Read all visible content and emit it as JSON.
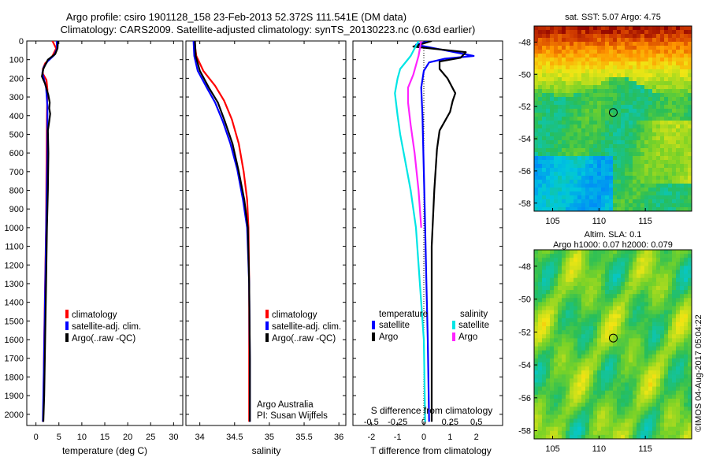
{
  "header": {
    "title_line1": "Argo profile: csiro 1901128_158 23-Feb-2013 52.372S 111.541E (DM data)",
    "title_line2": "Climatology: CARS2009. Satellite-adjusted climatology: synTS_20130223.nc (0.63d earlier)"
  },
  "colors": {
    "climatology": "#ff0000",
    "satellite": "#0000ff",
    "argo": "#000000",
    "satellite_salinity": "#00e5e5",
    "argo_salinity": "#ff22ff"
  },
  "depth_ticks": [
    "0",
    "100",
    "200",
    "300",
    "400",
    "500",
    "600",
    "700",
    "800",
    "900",
    "1000",
    "1100",
    "1200",
    "1300",
    "1400",
    "1500",
    "1600",
    "1700",
    "1800",
    "1900",
    "2000"
  ],
  "chart_data": [
    {
      "type": "line",
      "xlabel": "temperature (deg C)",
      "xlim": [
        -2,
        32
      ],
      "ylim": [
        2060,
        0
      ],
      "yreverse": true,
      "xticks": [
        "0",
        "5",
        "10",
        "15",
        "20",
        "25",
        "30"
      ],
      "legend": {
        "placement": "center-left",
        "entries": [
          "climatology",
          "satellite-adj. clim.",
          "Argo(..raw -QC)"
        ]
      },
      "series": [
        {
          "name": "climatology",
          "color": "#ff0000",
          "points": [
            [
              3.6,
              0
            ],
            [
              4.4,
              40
            ],
            [
              3.6,
              80
            ],
            [
              2.0,
              120
            ],
            [
              1.5,
              150
            ],
            [
              1.5,
              175
            ],
            [
              2.3,
              210
            ],
            [
              2.5,
              260
            ],
            [
              2.4,
              400
            ],
            [
              2.3,
              700
            ],
            [
              2.2,
              1000
            ],
            [
              2.0,
              1300
            ],
            [
              1.8,
              1600
            ],
            [
              1.6,
              2000
            ],
            [
              1.5,
              2040
            ]
          ]
        },
        {
          "name": "satellite-adj. clim.",
          "color": "#0000ff",
          "points": [
            [
              4.5,
              0
            ],
            [
              4.6,
              40
            ],
            [
              4.0,
              75
            ],
            [
              2.5,
              110
            ],
            [
              1.7,
              140
            ],
            [
              1.4,
              170
            ],
            [
              1.7,
              200
            ],
            [
              2.2,
              250
            ],
            [
              2.5,
              350
            ],
            [
              2.5,
              600
            ],
            [
              2.3,
              900
            ],
            [
              2.1,
              1200
            ],
            [
              1.9,
              1500
            ],
            [
              1.7,
              1800
            ],
            [
              1.5,
              2040
            ]
          ]
        },
        {
          "name": "Argo(..raw -QC)",
          "color": "#000000",
          "points": [
            [
              4.8,
              0
            ],
            [
              4.7,
              40
            ],
            [
              4.2,
              70
            ],
            [
              2.6,
              100
            ],
            [
              1.6,
              150
            ],
            [
              1.3,
              190
            ],
            [
              2.0,
              230
            ],
            [
              2.7,
              290
            ],
            [
              3.0,
              330
            ],
            [
              2.9,
              360
            ],
            [
              3.1,
              390
            ],
            [
              2.9,
              430
            ],
            [
              2.6,
              480
            ],
            [
              2.7,
              600
            ],
            [
              2.6,
              800
            ],
            [
              2.4,
              1000
            ],
            [
              2.2,
              1300
            ],
            [
              2.0,
              1600
            ],
            [
              1.8,
              1900
            ],
            [
              1.6,
              2040
            ]
          ]
        }
      ]
    },
    {
      "type": "line",
      "xlabel": "salinity",
      "xlim": [
        33.8,
        36.1
      ],
      "ylim": [
        2060,
        0
      ],
      "yreverse": true,
      "xticks": [
        "34",
        "34.5",
        "35",
        "35.5",
        "36"
      ],
      "legend": {
        "placement": "center-left",
        "entries": [
          "climatology",
          "satellite-adj. clim.",
          "Argo(..raw -QC)"
        ]
      },
      "annotations": [
        "Argo Australia",
        "PI: Susan Wijffels"
      ],
      "series": [
        {
          "name": "climatology",
          "color": "#ff0000",
          "points": [
            [
              33.92,
              0
            ],
            [
              33.95,
              80
            ],
            [
              34.05,
              160
            ],
            [
              34.22,
              240
            ],
            [
              34.35,
              320
            ],
            [
              34.46,
              420
            ],
            [
              34.56,
              550
            ],
            [
              34.63,
              700
            ],
            [
              34.68,
              850
            ],
            [
              34.7,
              1000
            ],
            [
              34.71,
              1300
            ],
            [
              34.71,
              1700
            ],
            [
              34.71,
              2040
            ]
          ]
        },
        {
          "name": "satellite-adj. clim.",
          "color": "#0000ff",
          "points": [
            [
              33.91,
              0
            ],
            [
              33.92,
              80
            ],
            [
              33.97,
              160
            ],
            [
              34.1,
              250
            ],
            [
              34.22,
              330
            ],
            [
              34.33,
              430
            ],
            [
              34.44,
              550
            ],
            [
              34.54,
              690
            ],
            [
              34.62,
              850
            ],
            [
              34.68,
              1000
            ],
            [
              34.71,
              1300
            ],
            [
              34.72,
              1700
            ],
            [
              34.72,
              2040
            ]
          ]
        },
        {
          "name": "Argo(..raw -QC)",
          "color": "#000000",
          "points": [
            [
              33.93,
              0
            ],
            [
              33.94,
              80
            ],
            [
              34.0,
              160
            ],
            [
              34.13,
              250
            ],
            [
              34.26,
              330
            ],
            [
              34.36,
              430
            ],
            [
              34.47,
              550
            ],
            [
              34.56,
              700
            ],
            [
              34.64,
              850
            ],
            [
              34.69,
              1000
            ],
            [
              34.71,
              1300
            ],
            [
              34.72,
              1700
            ],
            [
              34.72,
              2040
            ]
          ]
        }
      ]
    },
    {
      "type": "line",
      "xlabel": "T difference from climatology",
      "xlim": [
        -2.7,
        3.0
      ],
      "ylim": [
        2060,
        0
      ],
      "yreverse": true,
      "xticks": [
        "-2",
        "-1",
        "0",
        "1",
        "2"
      ],
      "xlabel2": "S difference from climatology",
      "xticks2": [
        "-0.5",
        "-0.25",
        "0",
        "0.25",
        "0.5"
      ],
      "legend": {
        "placement": "center",
        "group1": "temperature",
        "group2": "salinity",
        "entries": [
          "satellite",
          "Argo",
          "satellite",
          "Argo"
        ]
      },
      "series": [
        {
          "name": "satellite",
          "variable": "temperature",
          "color": "#0000ff",
          "points": [
            [
              0.2,
              0
            ],
            [
              -0.3,
              20
            ],
            [
              0.8,
              50
            ],
            [
              1.9,
              80
            ],
            [
              0.8,
              95
            ],
            [
              0.2,
              115
            ],
            [
              0.0,
              160
            ],
            [
              -0.1,
              250
            ],
            [
              -0.05,
              400
            ],
            [
              0.0,
              700
            ],
            [
              0.05,
              1000
            ],
            [
              0.1,
              1300
            ],
            [
              0.15,
              1600
            ],
            [
              0.2,
              2040
            ]
          ]
        },
        {
          "name": "Argo",
          "variable": "temperature",
          "color": "#000000",
          "points": [
            [
              0.3,
              0
            ],
            [
              -0.4,
              30
            ],
            [
              1.6,
              60
            ],
            [
              1.4,
              90
            ],
            [
              0.6,
              110
            ],
            [
              0.6,
              150
            ],
            [
              0.9,
              200
            ],
            [
              1.2,
              280
            ],
            [
              1.1,
              320
            ],
            [
              1.0,
              380
            ],
            [
              0.6,
              480
            ],
            [
              0.5,
              580
            ],
            [
              0.4,
              800
            ],
            [
              0.3,
              1100
            ],
            [
              0.3,
              1500
            ],
            [
              0.3,
              2040
            ]
          ]
        },
        {
          "name": "satellite",
          "variable": "salinity",
          "color": "#00e5e5",
          "points": [
            [
              -0.2,
              0
            ],
            [
              -0.5,
              80
            ],
            [
              -0.9,
              150
            ],
            [
              -1.0,
              200
            ],
            [
              -1.1,
              280
            ],
            [
              -1.0,
              400
            ],
            [
              -0.9,
              500
            ],
            [
              -0.7,
              650
            ],
            [
              -0.5,
              800
            ],
            [
              -0.3,
              1000
            ],
            [
              -0.15,
              1300
            ],
            [
              0.0,
              1600
            ],
            [
              0.05,
              2040
            ]
          ]
        },
        {
          "name": "Argo",
          "variable": "salinity",
          "color": "#ff22ff",
          "points": [
            [
              -0.1,
              0
            ],
            [
              -0.2,
              80
            ],
            [
              -0.4,
              180
            ],
            [
              -0.6,
              250
            ],
            [
              -0.6,
              330
            ],
            [
              -0.5,
              450
            ],
            [
              -0.35,
              600
            ],
            [
              -0.2,
              800
            ],
            [
              -0.1,
              1000
            ]
          ]
        }
      ]
    },
    {
      "type": "heatmap",
      "title": "sat. SST: 5.07 Argo: 4.75",
      "xlim": [
        103,
        120
      ],
      "ylim": [
        -58.5,
        -47
      ],
      "xticks": [
        "105",
        "110",
        "115"
      ],
      "yticks": [
        "-48",
        "-50",
        "-52",
        "-54",
        "-56",
        "-58"
      ],
      "marker": {
        "lon": 111.54,
        "lat": -52.37
      }
    },
    {
      "type": "heatmap",
      "title_line1": "Altim. SLA: 0.1",
      "title_line2": "Argo h1000: 0.07 h2000: 0.079",
      "xlim": [
        103,
        120
      ],
      "ylim": [
        -58.5,
        -47
      ],
      "xticks": [
        "105",
        "110",
        "115"
      ],
      "yticks": [
        "-48",
        "-50",
        "-52",
        "-54",
        "-56",
        "-58"
      ],
      "marker": {
        "lon": 111.54,
        "lat": -52.37
      }
    }
  ],
  "watermark": "©IMOS 04-Aug-2017 05:04:22"
}
